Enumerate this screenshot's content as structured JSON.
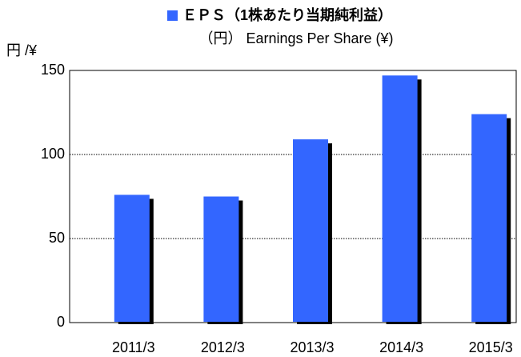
{
  "chart_data": {
    "type": "bar",
    "subtitle": "（円） Earnings Per Share (¥)",
    "y_axis_label": "円 /¥",
    "categories": [
      "2011/3",
      "2012/3",
      "2013/3",
      "2014/3",
      "2015/3"
    ],
    "series": [
      {
        "name": "ＥＰＳ（1株あたり当期純利益）",
        "color": "#3366ff",
        "values": [
          76,
          75,
          109,
          147,
          124
        ]
      }
    ],
    "ylim": [
      0,
      150
    ],
    "yticks": [
      0,
      50,
      100,
      150
    ],
    "grid": true,
    "legend": "top"
  }
}
